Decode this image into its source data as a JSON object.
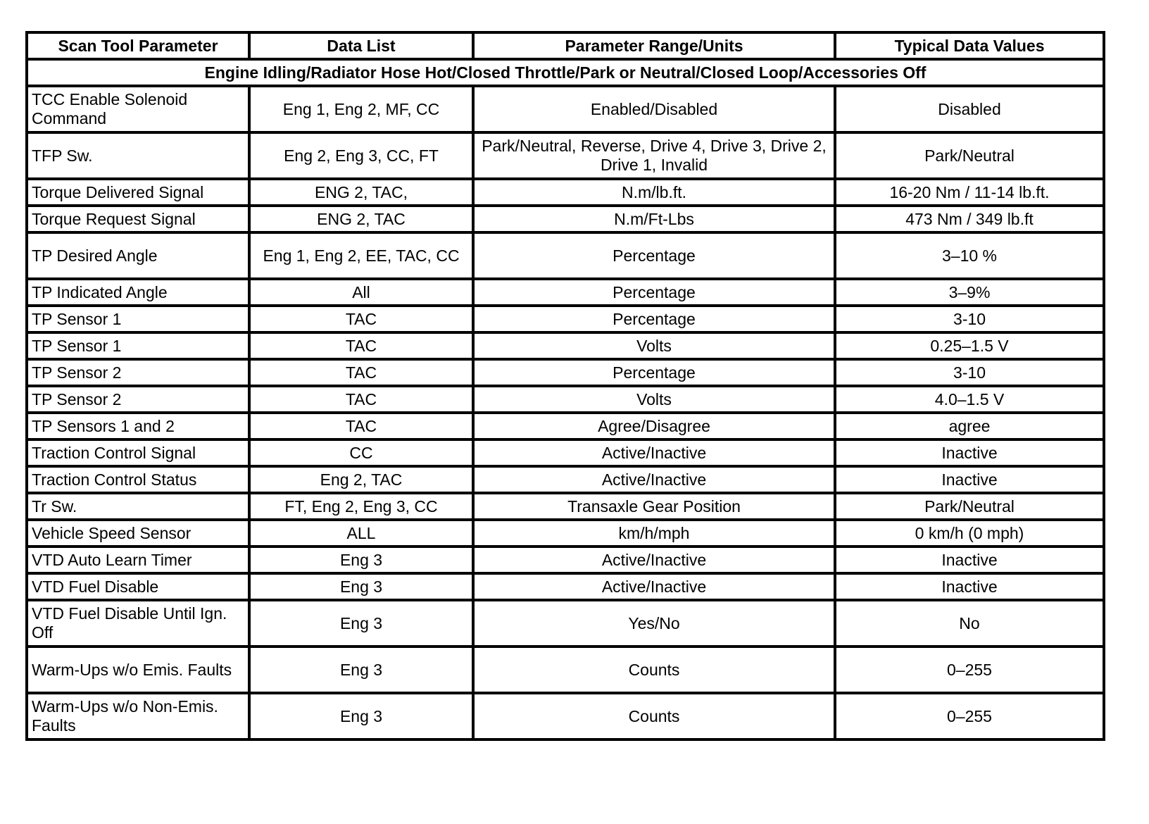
{
  "headers": [
    "Scan Tool Parameter",
    "Data List",
    "Parameter Range/Units",
    "Typical Data Values"
  ],
  "section": "Engine Idling/Radiator Hose Hot/Closed Throttle/Park or Neutral/Closed Loop/Accessories Off",
  "rows": [
    [
      "TCC Enable Solenoid Command",
      "Eng 1, Eng 2, MF, CC",
      "Enabled/Disabled",
      "Disabled"
    ],
    [
      "TFP Sw.",
      "Eng 2, Eng 3, CC, FT",
      "Park/Neutral, Reverse, Drive 4, Drive 3, Drive 2, Drive 1, Invalid",
      "Park/Neutral"
    ],
    [
      "Torque Delivered Signal",
      "ENG 2, TAC,",
      "N.m/lb.ft.",
      "16-20 Nm / 11-14 lb.ft."
    ],
    [
      "Torque Request Signal",
      "ENG 2, TAC",
      "N.m/Ft-Lbs",
      "473 Nm / 349 lb.ft"
    ],
    [
      "TP Desired Angle",
      "Eng 1, Eng 2, EE, TAC, CC",
      "Percentage",
      "3–10 %"
    ],
    [
      "TP Indicated Angle",
      "All",
      "Percentage",
      "3–9%"
    ],
    [
      "TP Sensor 1",
      "TAC",
      "Percentage",
      "3-10"
    ],
    [
      "TP Sensor 1",
      "TAC",
      "Volts",
      "0.25–1.5 V"
    ],
    [
      "TP Sensor 2",
      "TAC",
      "Percentage",
      "3-10"
    ],
    [
      "TP Sensor 2",
      "TAC",
      "Volts",
      "4.0–1.5 V"
    ],
    [
      "TP Sensors 1 and 2",
      "TAC",
      "Agree/Disagree",
      "agree"
    ],
    [
      "Traction Control Signal",
      "CC",
      "Active/Inactive",
      "Inactive"
    ],
    [
      "Traction Control Status",
      "Eng 2, TAC",
      "Active/Inactive",
      "Inactive"
    ],
    [
      "Tr Sw.",
      "FT, Eng 2, Eng 3, CC",
      "Transaxle Gear Position",
      "Park/Neutral"
    ],
    [
      "Vehicle Speed Sensor",
      "ALL",
      "km/h/mph",
      "0 km/h (0 mph)"
    ],
    [
      "VTD Auto Learn Timer",
      "Eng 3",
      "Active/Inactive",
      "Inactive"
    ],
    [
      "VTD Fuel Disable",
      "Eng 3",
      "Active/Inactive",
      "Inactive"
    ],
    [
      "VTD Fuel Disable Until Ign. Off",
      "Eng 3",
      "Yes/No",
      "No"
    ],
    [
      "Warm-Ups w/o Emis. Faults",
      "Eng 3",
      "Counts",
      "0–255"
    ],
    [
      "Warm-Ups w/o Non-Emis. Faults",
      "Eng 3",
      "Counts",
      "0–255"
    ]
  ]
}
